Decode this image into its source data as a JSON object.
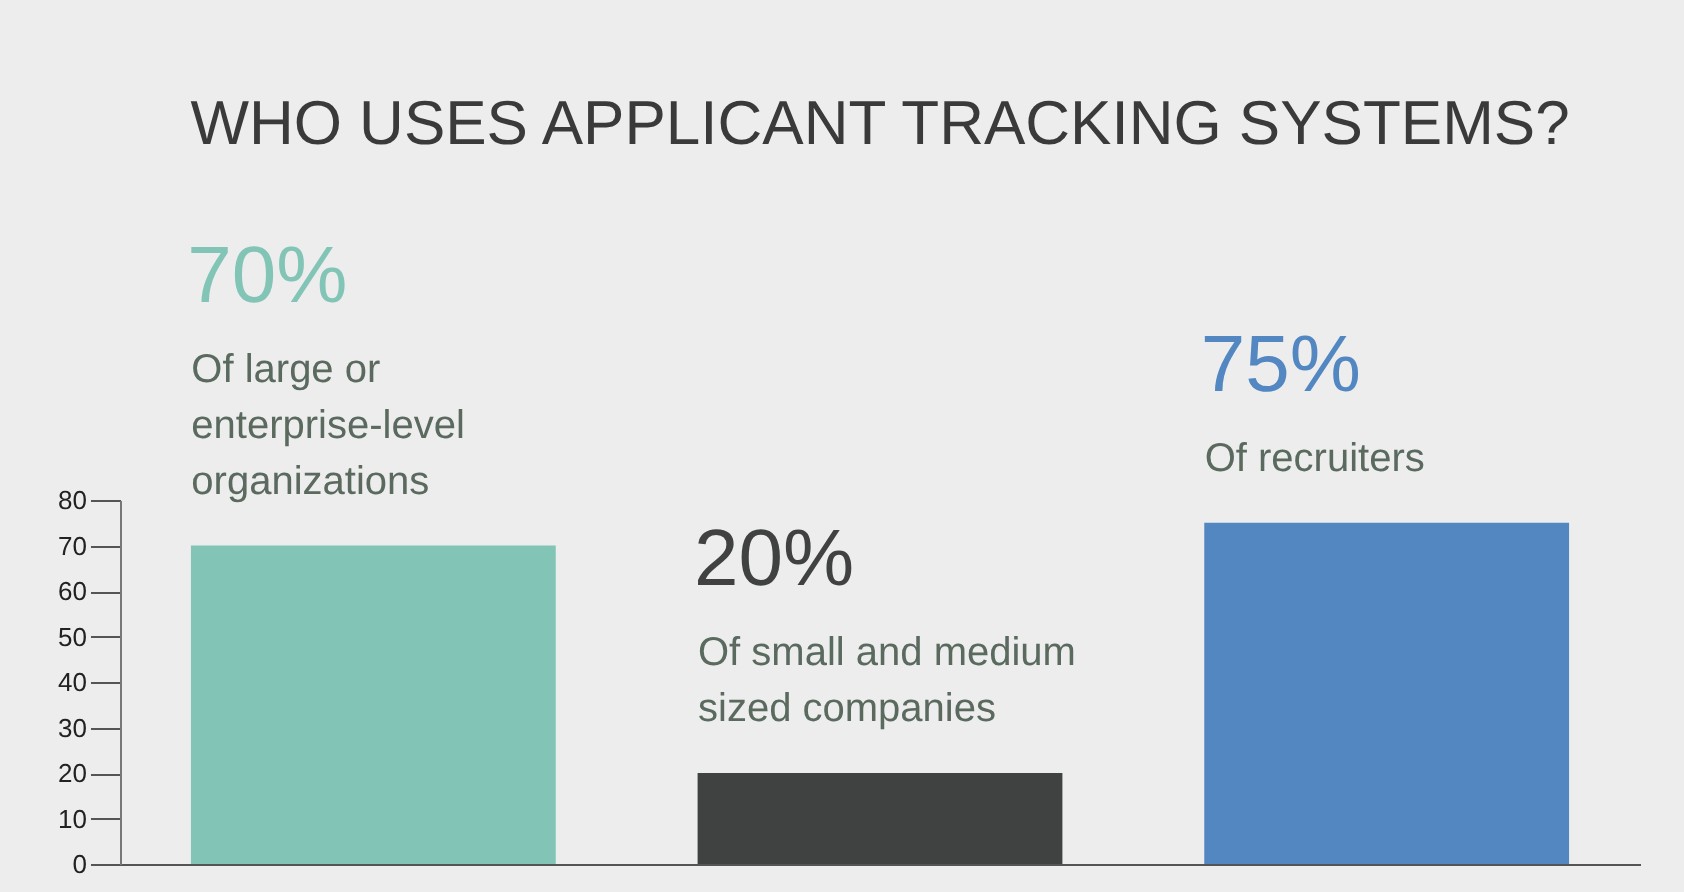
{
  "chart_data": {
    "type": "bar",
    "title": "WHO USES APPLICANT TRACKING SYSTEMS?",
    "categories": [
      "Of large or enterprise-level organizations",
      "Of small and medium sized companies",
      "Of recruiters"
    ],
    "values": [
      70,
      20,
      75
    ],
    "value_labels": [
      "70%",
      "20%",
      "75%"
    ],
    "colors": [
      "#82c5b7",
      "#404241",
      "#5287c2"
    ],
    "ylim": [
      0,
      80
    ],
    "yticks": [
      0,
      10,
      20,
      30,
      40,
      50,
      60,
      70,
      80
    ],
    "grid": false
  }
}
